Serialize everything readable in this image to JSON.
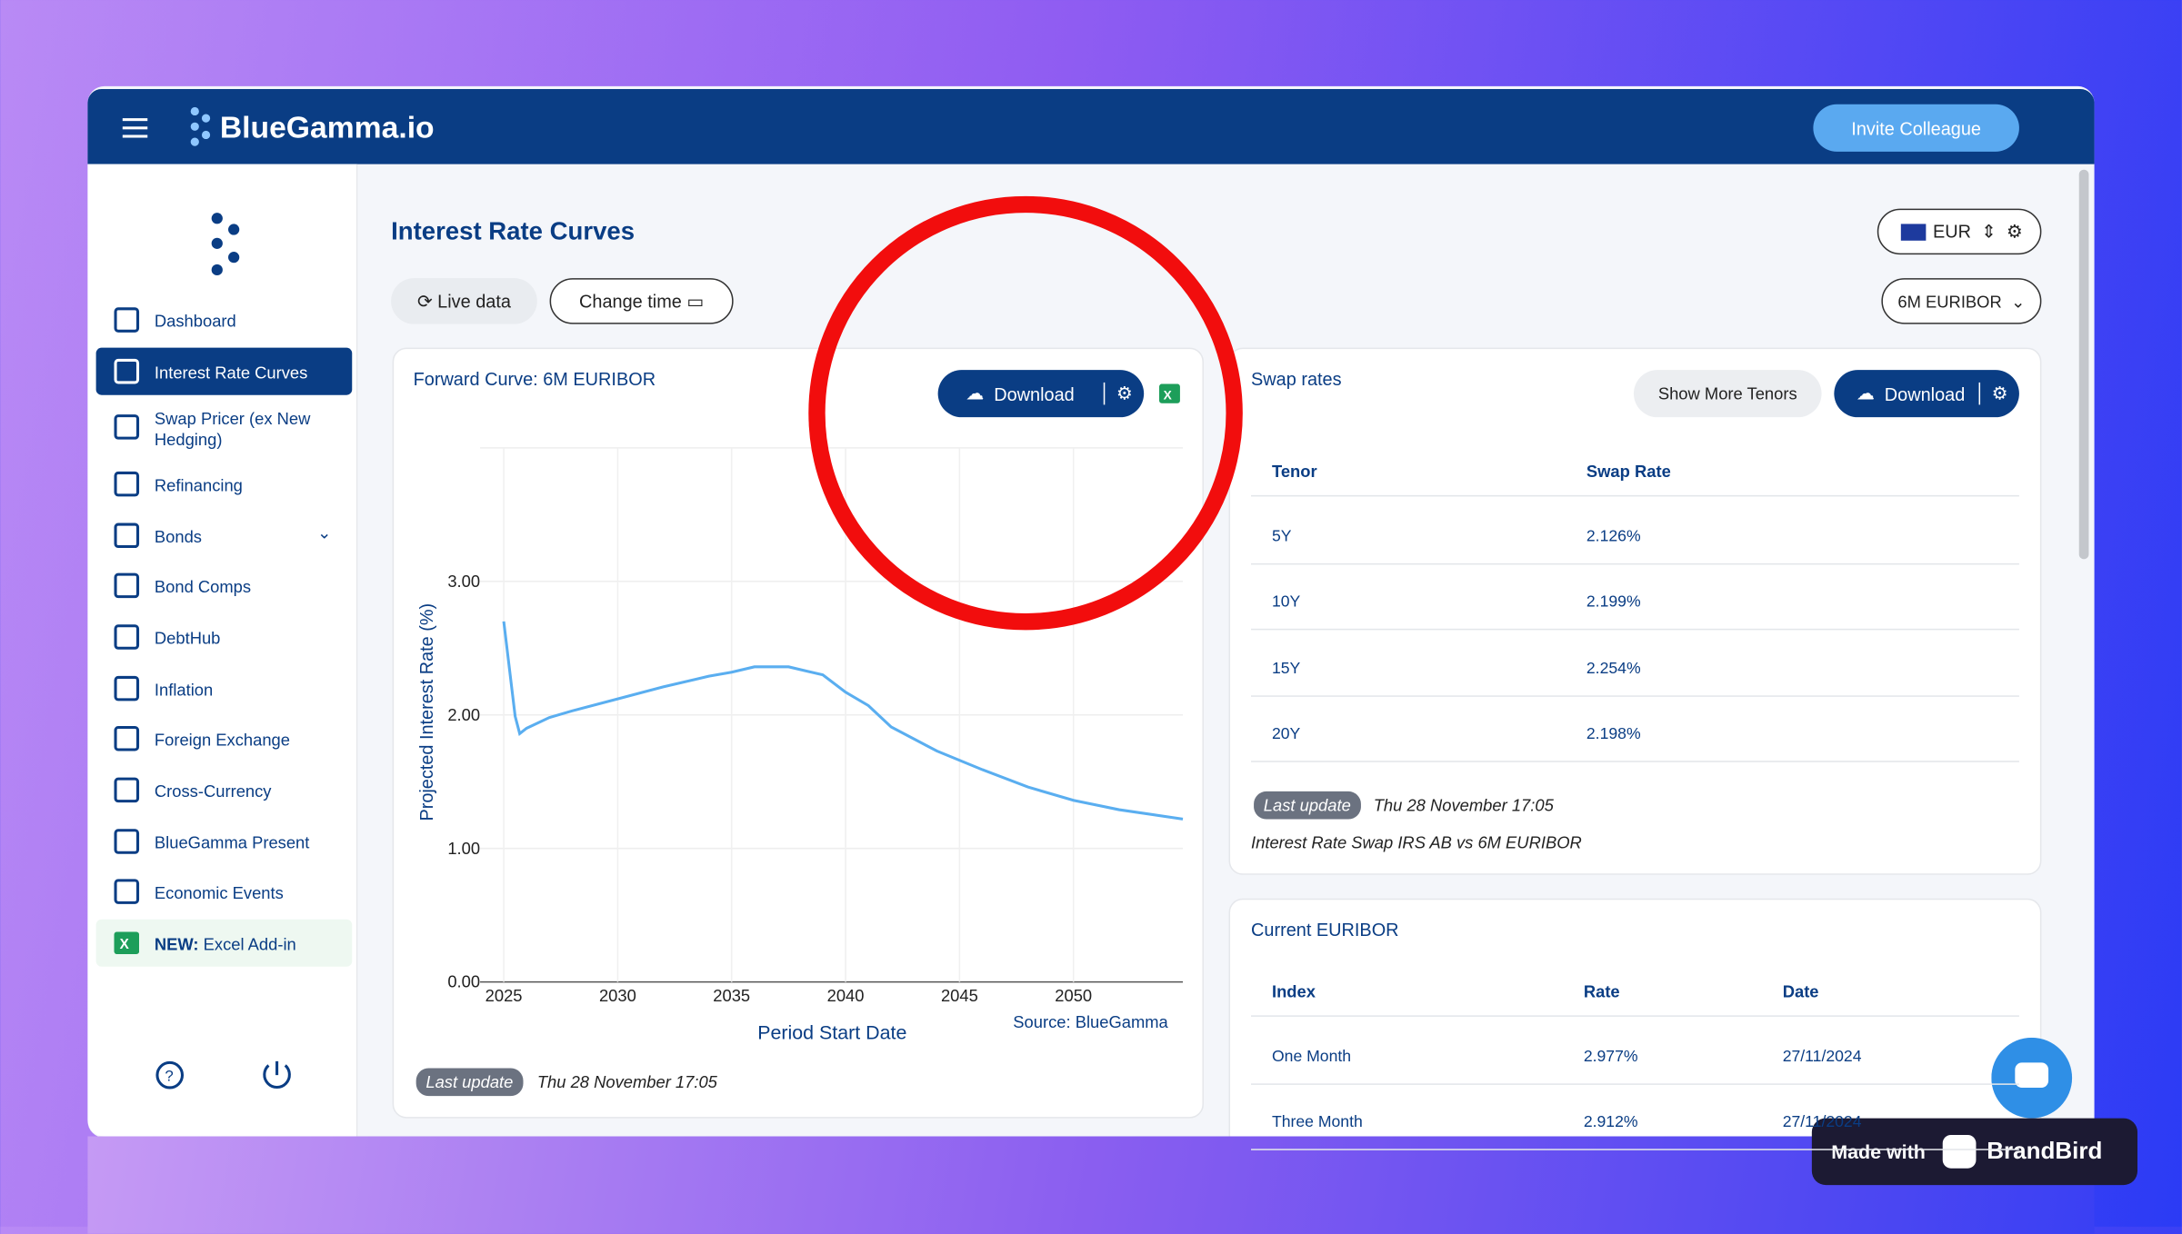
{
  "header": {
    "logo": "BlueGamma.io",
    "invite_button": "Invite Colleague"
  },
  "sidebar": {
    "items": [
      "Dashboard",
      "Interest Rate Curves",
      "Swap Pricer (ex New Hedging)",
      "Refinancing",
      "Bonds",
      "Bond Comps",
      "DebtHub",
      "Inflation",
      "Foreign Exchange",
      "Cross-Currency",
      "BlueGamma Present",
      "Economic Events"
    ],
    "excel_tag": "NEW:",
    "excel_item": "Excel Add-in"
  },
  "page": {
    "title": "Interest Rate Curves",
    "live_data": "Live data",
    "change_time": "Change time",
    "currency": "EUR",
    "index": "6M EURIBOR"
  },
  "forward_card": {
    "title": "Forward Curve: 6M EURIBOR",
    "download": "Download",
    "source": "Source:  BlueGamma",
    "last_update_tag": "Last update",
    "last_update": "Thu 28 November 17:05"
  },
  "chart_data": {
    "type": "line",
    "x_label": "Period Start Date",
    "y_label": "Projected Interest Rate (%)",
    "x": [
      2025,
      2025.5,
      2025.7,
      2026,
      2027,
      2028,
      2030,
      2032,
      2034,
      2035,
      2036,
      2037.5,
      2039,
      2040,
      2041,
      2042,
      2044,
      2046,
      2048,
      2050,
      2052,
      2054.8
    ],
    "series": [
      {
        "name": "6M EURIBOR",
        "color": "#5aaef0",
        "values": [
          2.7,
          1.99,
          1.86,
          1.9,
          1.98,
          2.03,
          2.12,
          2.21,
          2.29,
          2.32,
          2.36,
          2.36,
          2.3,
          2.17,
          2.07,
          1.91,
          1.73,
          1.59,
          1.46,
          1.36,
          1.29,
          1.22
        ]
      }
    ],
    "xlim": [
      2025,
      2054.8
    ],
    "xticks": [
      2025,
      2030,
      2035,
      2040,
      2045,
      2050
    ],
    "ylim": [
      0,
      4
    ],
    "yticks": [
      {
        "value": 0,
        "label": "0.00"
      },
      {
        "value": 1,
        "label": "1.00"
      },
      {
        "value": 2,
        "label": "2.00"
      },
      {
        "value": 3,
        "label": "3.00"
      }
    ],
    "grid": true
  },
  "swap_card": {
    "title": "Swap rates",
    "more_tenors": "Show More Tenors",
    "download": "Download",
    "columns": [
      "Tenor",
      "Swap Rate"
    ],
    "rows": [
      [
        "5Y",
        "2.126%"
      ],
      [
        "10Y",
        "2.199%"
      ],
      [
        "15Y",
        "2.254%"
      ],
      [
        "20Y",
        "2.198%"
      ]
    ],
    "last_update_tag": "Last update",
    "last_update": "Thu 28 November 17:05",
    "note": "Interest Rate Swap IRS AB vs 6M EURIBOR"
  },
  "euribor_card": {
    "title": "Current EURIBOR",
    "columns": [
      "Index",
      "Rate",
      "Date"
    ],
    "rows": [
      [
        "One Month",
        "2.977%",
        "27/11/2024"
      ],
      [
        "Three Month",
        "2.912%",
        "27/11/2024"
      ]
    ]
  },
  "badge": {
    "made_with": "Made with",
    "brand": "BrandBird"
  }
}
